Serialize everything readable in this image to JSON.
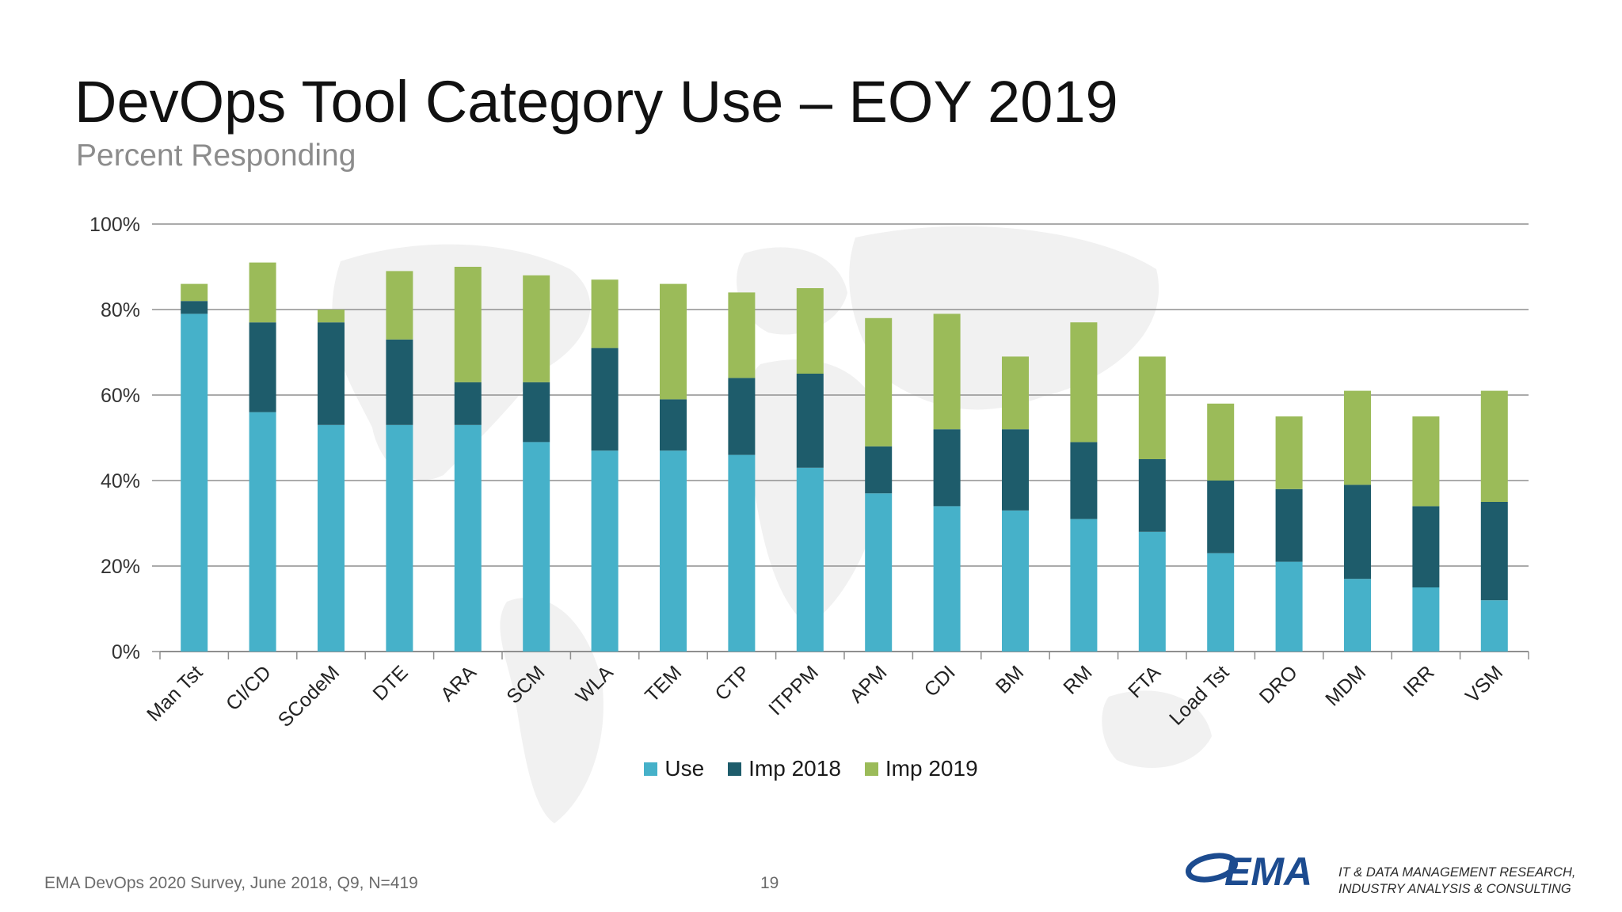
{
  "slide": {
    "title": "DevOps Tool Category Use – EOY 2019",
    "subtitle": "Percent Responding",
    "source_note": "EMA DevOps 2020 Survey, June 2018, Q9, N=419",
    "page_number": "19",
    "logo_text": "EMA",
    "tagline_line1": "IT & DATA MANAGEMENT RESEARCH,",
    "tagline_line2": "INDUSTRY ANALYSIS & CONSULTING"
  },
  "colors": {
    "use": "#46b1c9",
    "imp2018": "#1e5c6b",
    "imp2019": "#9bbb59",
    "gridline": "#8f8f8f",
    "logo": "#1c4b8f"
  },
  "chart_data": {
    "type": "bar",
    "stacked": true,
    "title": "",
    "xlabel": "",
    "ylabel": "",
    "ylim": [
      0,
      100
    ],
    "yticks": [
      0,
      20,
      40,
      60,
      80,
      100
    ],
    "ytick_format": "percent",
    "grid": true,
    "legend_position": "bottom",
    "categories": [
      "Man Tst",
      "CI/CD",
      "SCodeM",
      "DTE",
      "ARA",
      "SCM",
      "WLA",
      "TEM",
      "CTP",
      "ITPPM",
      "APM",
      "CDI",
      "BM",
      "RM",
      "FTA",
      "Load Tst",
      "DRO",
      "MDM",
      "IRR",
      "VSM"
    ],
    "series": [
      {
        "name": "Use",
        "values": [
          79,
          56,
          53,
          53,
          53,
          49,
          47,
          47,
          46,
          43,
          37,
          34,
          33,
          31,
          28,
          23,
          21,
          17,
          15,
          12
        ]
      },
      {
        "name": "Imp 2018",
        "values": [
          3,
          21,
          24,
          20,
          10,
          14,
          24,
          12,
          18,
          22,
          11,
          18,
          19,
          18,
          17,
          17,
          17,
          22,
          19,
          23
        ]
      },
      {
        "name": "Imp 2019",
        "values": [
          4,
          14,
          3,
          16,
          27,
          25,
          16,
          27,
          20,
          20,
          30,
          27,
          17,
          28,
          24,
          18,
          17,
          22,
          21,
          26
        ]
      }
    ]
  }
}
